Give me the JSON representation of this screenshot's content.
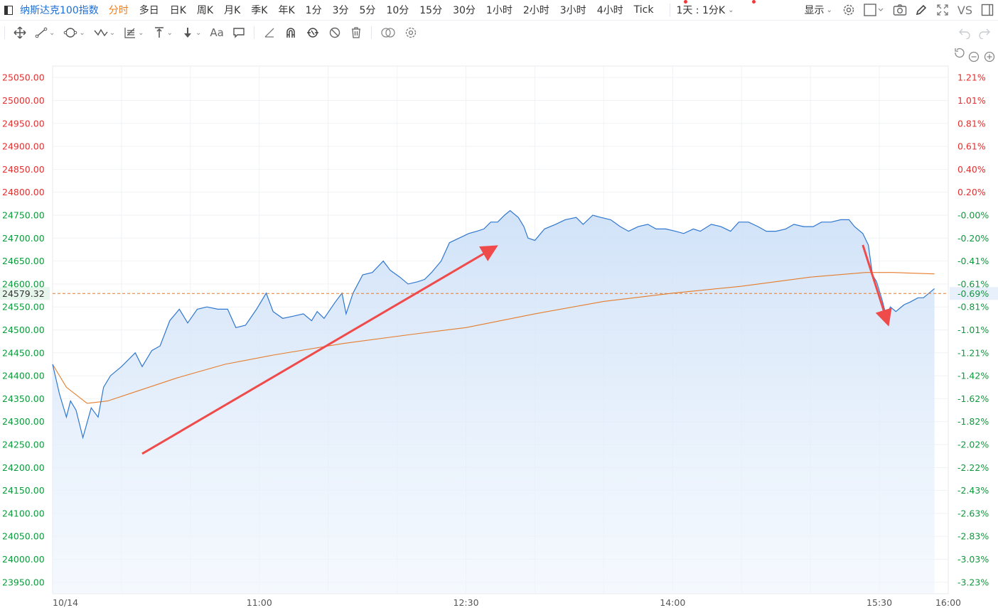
{
  "symbol": "纳斯达克100指数",
  "periods": [
    "分时",
    "多日",
    "日K",
    "周K",
    "月K",
    "季K",
    "年K",
    "1分",
    "3分",
    "5分",
    "10分",
    "15分",
    "30分",
    "1小时",
    "2小时",
    "3小时",
    "4小时",
    "Tick"
  ],
  "active_period": "分时",
  "range_select": "1天 : 1分K",
  "display_label": "显示",
  "vs_label": "VS",
  "toolbar_icons": [
    "move-icon",
    "line-tool-icon",
    "ring-tool-icon",
    "wave-tool-icon",
    "grid-tool-icon",
    "price-line-icon",
    "arrow-down-icon",
    "text-tool-icon",
    "comment-icon",
    "ruler-icon",
    "magnet-icon",
    "link-icon",
    "hide-icon",
    "delete-icon",
    "compare-icon",
    "settings-icon"
  ],
  "text_tool_label": "Aa",
  "colors": {
    "up": "#e0302f",
    "down": "#0a9b3a",
    "line": "#2f77d0",
    "avg": "#e57c2c",
    "arrow": "#ef4b4b",
    "fill": "#dbe9fb"
  },
  "current_price": "24579.32",
  "current_pct": "-0.69%",
  "chart_data": {
    "type": "line",
    "x_ticks": [
      "10/14",
      "11:00",
      "12:30",
      "14:00",
      "15:30",
      "16:00"
    ],
    "ylim": [
      23925,
      25075
    ],
    "y_ticks": [
      "25050.00",
      "25000.00",
      "24950.00",
      "24900.00",
      "24850.00",
      "24800.00",
      "24750.00",
      "24700.00",
      "24650.00",
      "24600.00",
      "24550.00",
      "24500.00",
      "24450.00",
      "24400.00",
      "24350.00",
      "24300.00",
      "24250.00",
      "24200.00",
      "24150.00",
      "24100.00",
      "24050.00",
      "24000.00",
      "23950.00"
    ],
    "pct_ticks": [
      "1.21%",
      "1.01%",
      "0.81%",
      "0.61%",
      "0.40%",
      "0.20%",
      "-0.00%",
      "-0.20%",
      "-0.41%",
      "-0.61%",
      "-0.81%",
      "-1.01%",
      "-1.21%",
      "-1.42%",
      "-1.62%",
      "-1.82%",
      "-2.02%",
      "-2.22%",
      "-2.43%",
      "-2.63%",
      "-2.83%",
      "-3.03%",
      "-3.23%"
    ],
    "prev_close": 24750,
    "series": [
      {
        "values": [
          [
            9.5,
            24425
          ],
          [
            9.55,
            24360
          ],
          [
            9.6,
            24310
          ],
          [
            9.63,
            24345
          ],
          [
            9.67,
            24325
          ],
          [
            9.72,
            24265
          ],
          [
            9.78,
            24330
          ],
          [
            9.83,
            24310
          ],
          [
            9.87,
            24375
          ],
          [
            9.92,
            24400
          ],
          [
            10.0,
            24420
          ],
          [
            10.1,
            24450
          ],
          [
            10.15,
            24420
          ],
          [
            10.22,
            24455
          ],
          [
            10.28,
            24465
          ],
          [
            10.35,
            24520
          ],
          [
            10.42,
            24545
          ],
          [
            10.48,
            24515
          ],
          [
            10.55,
            24545
          ],
          [
            10.62,
            24550
          ],
          [
            10.7,
            24545
          ],
          [
            10.77,
            24545
          ],
          [
            10.83,
            24505
          ],
          [
            10.9,
            24510
          ],
          [
            10.98,
            24545
          ],
          [
            11.05,
            24580
          ],
          [
            11.1,
            24540
          ],
          [
            11.17,
            24525
          ],
          [
            11.25,
            24530
          ],
          [
            11.32,
            24535
          ],
          [
            11.38,
            24520
          ],
          [
            11.42,
            24540
          ],
          [
            11.47,
            24525
          ],
          [
            11.55,
            24560
          ],
          [
            11.6,
            24580
          ],
          [
            11.63,
            24535
          ],
          [
            11.68,
            24580
          ],
          [
            11.75,
            24620
          ],
          [
            11.82,
            24625
          ],
          [
            11.9,
            24650
          ],
          [
            11.95,
            24630
          ],
          [
            12.02,
            24615
          ],
          [
            12.08,
            24600
          ],
          [
            12.15,
            24605
          ],
          [
            12.2,
            24610
          ],
          [
            12.25,
            24625
          ],
          [
            12.32,
            24650
          ],
          [
            12.38,
            24690
          ],
          [
            12.45,
            24700
          ],
          [
            12.52,
            24710
          ],
          [
            12.58,
            24715
          ],
          [
            12.63,
            24720
          ],
          [
            12.68,
            24735
          ],
          [
            12.73,
            24735
          ],
          [
            12.78,
            24750
          ],
          [
            12.82,
            24760
          ],
          [
            12.88,
            24745
          ],
          [
            12.92,
            24725
          ],
          [
            12.95,
            24700
          ],
          [
            13.0,
            24695
          ],
          [
            13.07,
            24720
          ],
          [
            13.15,
            24730
          ],
          [
            13.22,
            24740
          ],
          [
            13.3,
            24745
          ],
          [
            13.35,
            24730
          ],
          [
            13.42,
            24750
          ],
          [
            13.48,
            24745
          ],
          [
            13.55,
            24740
          ],
          [
            13.62,
            24725
          ],
          [
            13.68,
            24715
          ],
          [
            13.75,
            24725
          ],
          [
            13.82,
            24730
          ],
          [
            13.88,
            24720
          ],
          [
            13.95,
            24720
          ],
          [
            14.02,
            24715
          ],
          [
            14.08,
            24710
          ],
          [
            14.15,
            24720
          ],
          [
            14.2,
            24715
          ],
          [
            14.28,
            24730
          ],
          [
            14.35,
            24725
          ],
          [
            14.42,
            24715
          ],
          [
            14.48,
            24735
          ],
          [
            14.55,
            24735
          ],
          [
            14.62,
            24725
          ],
          [
            14.68,
            24715
          ],
          [
            14.75,
            24715
          ],
          [
            14.82,
            24720
          ],
          [
            14.88,
            24730
          ],
          [
            14.95,
            24725
          ],
          [
            15.02,
            24725
          ],
          [
            15.08,
            24735
          ],
          [
            15.15,
            24735
          ],
          [
            15.22,
            24740
          ],
          [
            15.28,
            24740
          ],
          [
            15.32,
            24725
          ],
          [
            15.38,
            24710
          ],
          [
            15.42,
            24685
          ],
          [
            15.45,
            24620
          ],
          [
            15.48,
            24605
          ],
          [
            15.52,
            24565
          ],
          [
            15.55,
            24530
          ],
          [
            15.58,
            24550
          ],
          [
            15.62,
            24540
          ],
          [
            15.68,
            24555
          ],
          [
            15.72,
            24560
          ],
          [
            15.78,
            24570
          ],
          [
            15.82,
            24570
          ],
          [
            15.86,
            24580
          ],
          [
            15.9,
            24590
          ]
        ]
      },
      {
        "values": [
          [
            9.5,
            24425
          ],
          [
            9.6,
            24375
          ],
          [
            9.75,
            24340
          ],
          [
            9.9,
            24345
          ],
          [
            10.1,
            24365
          ],
          [
            10.4,
            24395
          ],
          [
            10.75,
            24425
          ],
          [
            11.1,
            24445
          ],
          [
            11.6,
            24470
          ],
          [
            12.1,
            24490
          ],
          [
            12.5,
            24505
          ],
          [
            13.0,
            24535
          ],
          [
            13.5,
            24562
          ],
          [
            14.0,
            24580
          ],
          [
            14.5,
            24595
          ],
          [
            15.0,
            24615
          ],
          [
            15.4,
            24625
          ],
          [
            15.6,
            24625
          ],
          [
            15.9,
            24622
          ]
        ]
      }
    ]
  }
}
